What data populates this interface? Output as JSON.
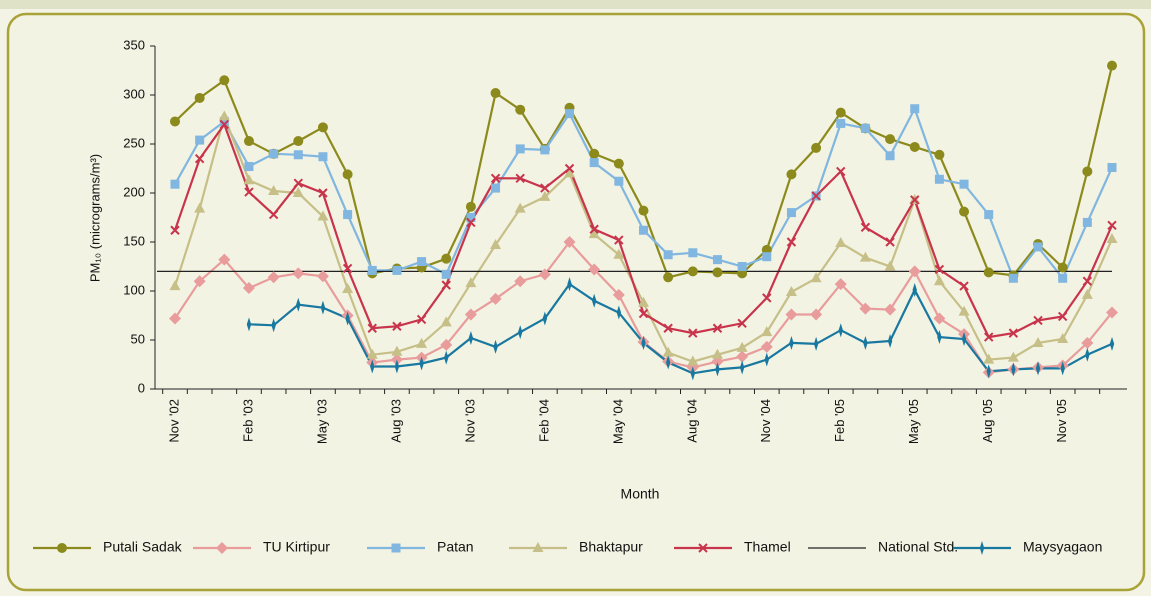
{
  "chart_data": {
    "type": "line",
    "y_label": "PM₁₀ (micrograms/m³)",
    "x_label": "Month",
    "categories": [
      "Nov '02",
      null,
      null,
      "Feb '03",
      null,
      null,
      "May '03",
      null,
      null,
      "Aug '03",
      null,
      null,
      "Nov '03",
      null,
      null,
      "Feb '04",
      null,
      null,
      "May '04",
      null,
      null,
      "Aug '04",
      null,
      null,
      "Nov '04",
      null,
      null,
      "Feb '05",
      null,
      null,
      "May '05",
      null,
      null,
      "Aug '05",
      null,
      null,
      "Nov '05",
      null,
      null
    ],
    "ylim": [
      0,
      350
    ],
    "yticks": [
      0,
      50,
      100,
      150,
      200,
      250,
      300,
      350
    ],
    "legend": "bottom",
    "series": [
      {
        "name": "Putali Sadak",
        "color": "#8c8a1c",
        "marker": "circle",
        "values": [
          273,
          297,
          315,
          253,
          240,
          253,
          267,
          219,
          118,
          123,
          124,
          133,
          186,
          302,
          285,
          245,
          287,
          240,
          230,
          182,
          114,
          120,
          119,
          118,
          142,
          219,
          246,
          282,
          266,
          255,
          247,
          239,
          181,
          119,
          116,
          148,
          124,
          222,
          330
        ]
      },
      {
        "name": "TU Kirtipur",
        "color": "#e89c9c",
        "marker": "diamond",
        "values": [
          72,
          110,
          132,
          103,
          114,
          118,
          115,
          75,
          27,
          30,
          32,
          45,
          76,
          92,
          110,
          117,
          150,
          122,
          96,
          48,
          28,
          22,
          28,
          33,
          43,
          76,
          76,
          107,
          82,
          81,
          120,
          72,
          56,
          17,
          20,
          22,
          24,
          47,
          78
        ]
      },
      {
        "name": "Patan",
        "color": "#80b6e0",
        "marker": "square",
        "values": [
          209,
          254,
          273,
          227,
          240,
          239,
          237,
          178,
          121,
          121,
          130,
          117,
          175,
          205,
          245,
          244,
          281,
          231,
          212,
          162,
          137,
          139,
          132,
          125,
          135,
          180,
          197,
          271,
          266,
          238,
          286,
          214,
          209,
          178,
          113,
          145,
          113,
          170,
          226
        ]
      },
      {
        "name": "Bhaktapur",
        "color": "#c6bf88",
        "marker": "triangle",
        "values": [
          105,
          184,
          278,
          213,
          202,
          200,
          176,
          102,
          35,
          38,
          46,
          68,
          108,
          147,
          184,
          196,
          220,
          158,
          137,
          88,
          37,
          28,
          35,
          42,
          58,
          99,
          113,
          149,
          134,
          125,
          193,
          110,
          79,
          30,
          32,
          47,
          51,
          96,
          153
        ]
      },
      {
        "name": "Thamel",
        "color": "#c8344c",
        "marker": "x",
        "values": [
          162,
          235,
          270,
          201,
          178,
          210,
          200,
          123,
          62,
          64,
          71,
          106,
          170,
          215,
          215,
          205,
          225,
          163,
          152,
          77,
          62,
          57,
          62,
          67,
          93,
          150,
          197,
          222,
          165,
          150,
          193,
          122,
          105,
          53,
          57,
          70,
          74,
          110,
          167
        ]
      },
      {
        "name": "National Std.",
        "color": "#222222",
        "marker": "none",
        "value": 120
      },
      {
        "name": "Maysyagaon",
        "color": "#1878a0",
        "marker": "bar",
        "values": [
          null,
          null,
          null,
          66,
          65,
          86,
          83,
          72,
          23,
          23,
          26,
          32,
          52,
          43,
          58,
          72,
          107,
          90,
          78,
          47,
          27,
          16,
          20,
          22,
          30,
          47,
          46,
          60,
          47,
          49,
          101,
          53,
          51,
          18,
          20,
          21,
          21,
          35,
          46
        ]
      }
    ]
  }
}
